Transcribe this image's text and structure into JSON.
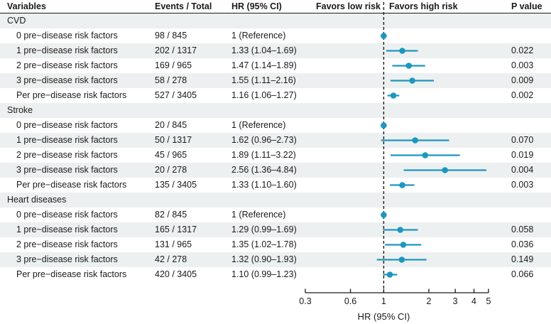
{
  "header": {
    "variables": "Variables",
    "events_total": "Events / Total",
    "hr_ci": "HR (95% CI)",
    "favors_low": "Favors low risk",
    "favors_high": "Favors high risk",
    "p_value": "P value"
  },
  "axis": {
    "label": "HR (95% CI)",
    "scale": "log",
    "range": [
      0.3,
      5
    ],
    "ticks": [
      0.3,
      0.6,
      1,
      2,
      3,
      4,
      5
    ],
    "tick_labels": [
      "0.3",
      "0.6",
      "1",
      "2",
      "3",
      "4",
      "5"
    ],
    "reference_line": 1
  },
  "colors": {
    "marker": "#1d97bf",
    "stripe": "#edf0f0",
    "axis": "#1a1a1a",
    "text": "#1a1a1a"
  },
  "chart_data": {
    "type": "forest",
    "title": "",
    "legend_position": "none",
    "grid": false,
    "groups": [
      {
        "label": "CVD",
        "rows": [
          {
            "label": "0 pre−disease risk factors",
            "events_total": "98 / 845",
            "hr_text": "1 (Reference)",
            "hr": 1,
            "lo": null,
            "hi": null,
            "p": ""
          },
          {
            "label": "1 pre−disease risk factors",
            "events_total": "202 / 1317",
            "hr_text": "1.33 (1.04–1.69)",
            "hr": 1.33,
            "lo": 1.04,
            "hi": 1.69,
            "p": "0.022"
          },
          {
            "label": "2 pre−disease risk factors",
            "events_total": "169 / 965",
            "hr_text": "1.47 (1.14–1.89)",
            "hr": 1.47,
            "lo": 1.14,
            "hi": 1.89,
            "p": "0.003"
          },
          {
            "label": "3 pre−disease risk factors",
            "events_total": "58 / 278",
            "hr_text": "1.55 (1.11–2.16)",
            "hr": 1.55,
            "lo": 1.11,
            "hi": 2.16,
            "p": "0.009"
          },
          {
            "label": "Per pre−disease risk factors",
            "events_total": "527 / 3405",
            "hr_text": "1.16 (1.06–1.27)",
            "hr": 1.16,
            "lo": 1.06,
            "hi": 1.27,
            "p": "0.002"
          }
        ]
      },
      {
        "label": "Stroke",
        "rows": [
          {
            "label": "0 pre−disease risk factors",
            "events_total": "20 / 845",
            "hr_text": "1 (Reference)",
            "hr": 1,
            "lo": null,
            "hi": null,
            "p": ""
          },
          {
            "label": "1 pre−disease risk factors",
            "events_total": "50 / 1317",
            "hr_text": "1.62 (0.96–2.73)",
            "hr": 1.62,
            "lo": 0.96,
            "hi": 2.73,
            "p": "0.070"
          },
          {
            "label": "2 pre−disease risk factors",
            "events_total": "45 / 965",
            "hr_text": "1.89 (1.11–3.22)",
            "hr": 1.89,
            "lo": 1.11,
            "hi": 3.22,
            "p": "0.019"
          },
          {
            "label": "3 pre−disease risk factors",
            "events_total": "20 / 278",
            "hr_text": "2.56 (1.36–4.84)",
            "hr": 2.56,
            "lo": 1.36,
            "hi": 4.84,
            "p": "0.004"
          },
          {
            "label": "Per pre−disease risk factors",
            "events_total": "135 / 3405",
            "hr_text": "1.33 (1.10–1.60)",
            "hr": 1.33,
            "lo": 1.1,
            "hi": 1.6,
            "p": "0.003"
          }
        ]
      },
      {
        "label": "Heart diseases",
        "rows": [
          {
            "label": "0 pre−disease risk factors",
            "events_total": "82 / 845",
            "hr_text": "1 (Reference)",
            "hr": 1,
            "lo": null,
            "hi": null,
            "p": ""
          },
          {
            "label": "1 pre−disease risk factors",
            "events_total": "165 / 1317",
            "hr_text": "1.29 (0.99–1.69)",
            "hr": 1.29,
            "lo": 0.99,
            "hi": 1.69,
            "p": "0.058"
          },
          {
            "label": "2 pre−disease risk factors",
            "events_total": "131 / 965",
            "hr_text": "1.35 (1.02–1.78)",
            "hr": 1.35,
            "lo": 1.02,
            "hi": 1.78,
            "p": "0.036"
          },
          {
            "label": "3 pre−disease risk factors",
            "events_total": "42 / 278",
            "hr_text": "1.32 (0.90–1.93)",
            "hr": 1.32,
            "lo": 0.9,
            "hi": 1.93,
            "p": "0.149"
          },
          {
            "label": "Per pre−disease risk factors",
            "events_total": "420 / 3405",
            "hr_text": "1.10 (0.99–1.23)",
            "hr": 1.1,
            "lo": 0.99,
            "hi": 1.23,
            "p": "0.066"
          }
        ]
      }
    ]
  }
}
